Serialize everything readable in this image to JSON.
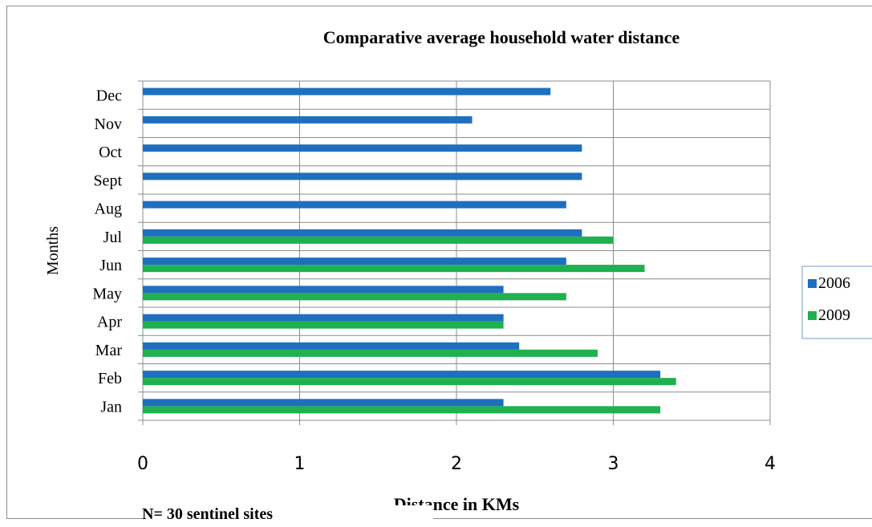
{
  "chart_data": {
    "type": "bar",
    "orientation": "horizontal",
    "title": "Comparative average household water distance",
    "xlabel": "Distance in KMs",
    "ylabel": "Months",
    "xlim": [
      0,
      4
    ],
    "xticks": [
      "0",
      "1",
      "2",
      "3",
      "4"
    ],
    "grid": true,
    "legend_position": "right",
    "categories": [
      "Jan",
      "Feb",
      "Mar",
      "Apr",
      "May",
      "Jun",
      "Jul",
      "Aug",
      "Sept",
      "Oct",
      "Nov",
      "Dec"
    ],
    "series": [
      {
        "name": "2006",
        "color": "#1f6fbf",
        "values": [
          2.3,
          3.3,
          2.4,
          2.3,
          2.3,
          2.7,
          2.8,
          2.7,
          2.8,
          2.8,
          2.1,
          2.6
        ]
      },
      {
        "name": "2009",
        "color": "#1fb050",
        "values": [
          3.3,
          3.4,
          2.9,
          2.3,
          2.7,
          3.2,
          3.0,
          null,
          null,
          null,
          null,
          null
        ]
      }
    ]
  },
  "footnote": "N= 30 sentinel sites"
}
